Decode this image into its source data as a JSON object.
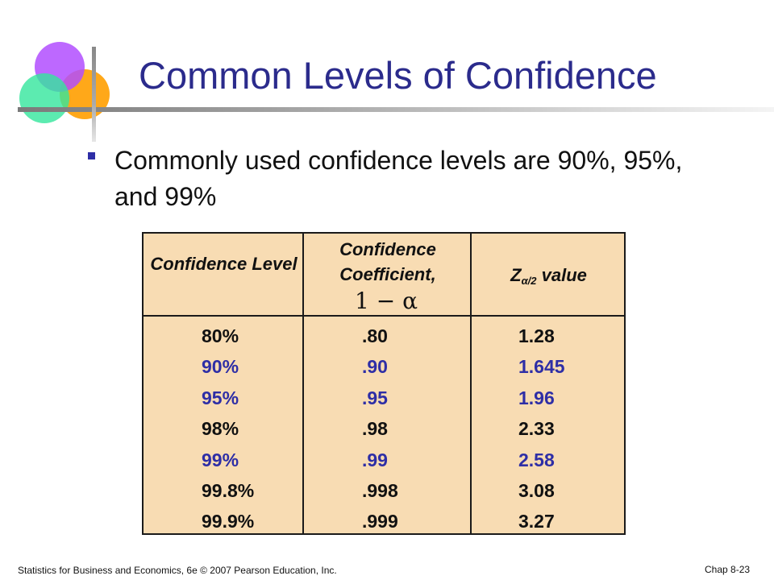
{
  "slide": {
    "title": "Common Levels of Confidence",
    "bullet": "Commonly used confidence levels are 90%, 95%, and 99%"
  },
  "table": {
    "headers": {
      "level": "Confidence Level",
      "coefficient": "Confidence Coefficient,",
      "coefficient_formula": "1 − α",
      "z_value_prefix": "Z",
      "z_value_subscript": "α/2",
      "z_value_suffix": "value"
    },
    "rows": [
      {
        "level": "80%",
        "coefficient": ".80",
        "z": "1.28",
        "highlight": false
      },
      {
        "level": "90%",
        "coefficient": ".90",
        "z": "1.645",
        "highlight": true
      },
      {
        "level": "95%",
        "coefficient": ".95",
        "z": "1.96",
        "highlight": true
      },
      {
        "level": "98%",
        "coefficient": ".98",
        "z": "2.33",
        "highlight": false
      },
      {
        "level": "99%",
        "coefficient": ".99",
        "z": "2.58",
        "highlight": true
      },
      {
        "level": "99.8%",
        "coefficient": ".998",
        "z": "3.08",
        "highlight": false
      },
      {
        "level": "99.9%",
        "coefficient": ".999",
        "z": "3.27",
        "highlight": false
      }
    ]
  },
  "footer": {
    "source": "Statistics for Business and Economics, 6e © 2007 Pearson Education, Inc.",
    "page": "Chap 8-23"
  },
  "colors": {
    "title": "#2b2b8c",
    "highlight": "#2e2ea6",
    "table_fill": "#f8dcb3"
  },
  "icons": {
    "logo": "overlapping-circles-logo",
    "bullet": "square-bullet-icon"
  }
}
